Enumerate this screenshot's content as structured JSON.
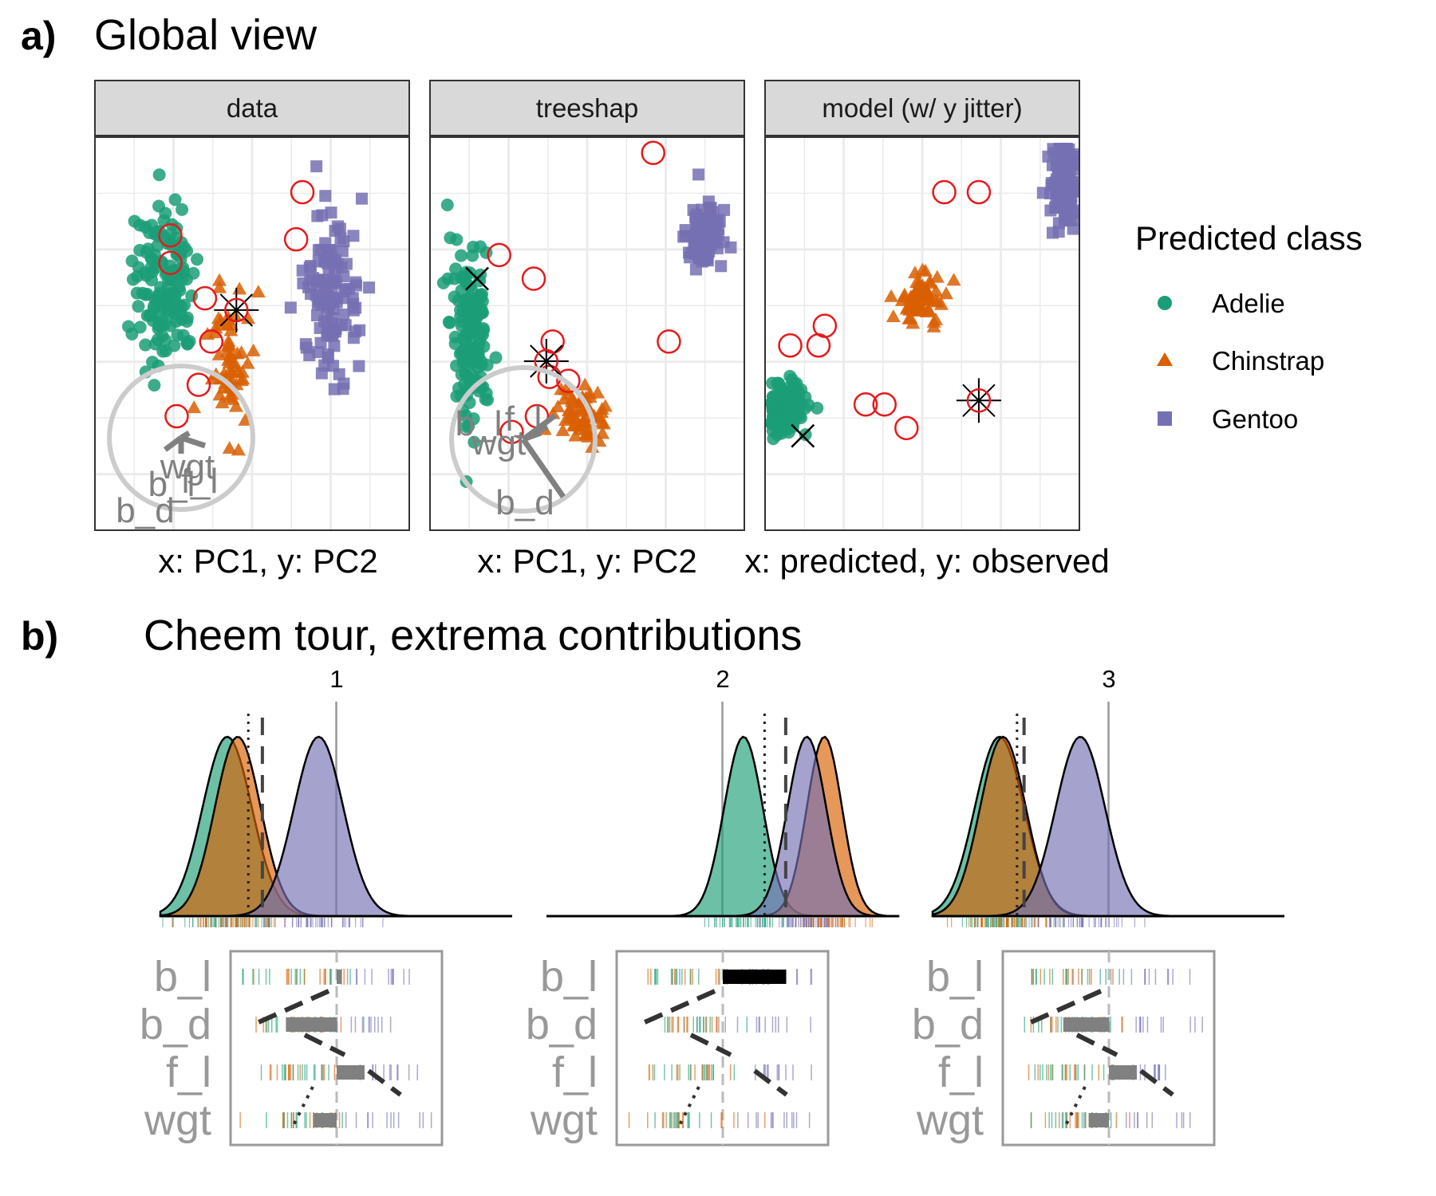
{
  "section_a": {
    "letter": "a)",
    "title": "Global view"
  },
  "section_b": {
    "letter": "b)",
    "title": "Cheem tour, extrema contributions"
  },
  "legend": {
    "title": "Predicted class",
    "items": [
      {
        "label": "Adelie",
        "color": "#1b9e77",
        "shape": "circle"
      },
      {
        "label": "Chinstrap",
        "color": "#d95f02",
        "shape": "triangle"
      },
      {
        "label": "Gentoo",
        "color": "#7570b3",
        "shape": "square"
      }
    ]
  },
  "colors": {
    "adelie": "#1b9e77",
    "chinstrap": "#d95f02",
    "gentoo": "#7570b3",
    "highlight": "#e41a1c",
    "axis_grey": "#999999",
    "strip_fill": "#d9d9d9"
  },
  "chart_data": [
    {
      "type": "scatter",
      "facet": "data",
      "caption": "x: PC1, y: PC2",
      "series": [
        {
          "name": "Adelie",
          "shape": "circle",
          "center": [
            0.22,
            0.37
          ],
          "spread": [
            0.09,
            0.19
          ],
          "count": 140
        },
        {
          "name": "Chinstrap",
          "shape": "triangle",
          "center": [
            0.43,
            0.58
          ],
          "spread": [
            0.06,
            0.17
          ],
          "count": 62
        },
        {
          "name": "Gentoo",
          "shape": "square",
          "center": [
            0.75,
            0.41
          ],
          "spread": [
            0.08,
            0.18
          ],
          "count": 115
        }
      ],
      "highlighted": [
        [
          0.66,
          0.14
        ],
        [
          0.24,
          0.25
        ],
        [
          0.24,
          0.32
        ],
        [
          0.35,
          0.41
        ],
        [
          0.37,
          0.52
        ],
        [
          0.33,
          0.63
        ],
        [
          0.26,
          0.71
        ],
        [
          0.64,
          0.26
        ]
      ],
      "primary_obs": [
        0.45,
        0.44
      ],
      "comparison_obs": [
        0.44,
        0.44
      ],
      "axes_biplot": {
        "labels": [
          "b_l",
          "b_d",
          "f_l",
          "wgt"
        ]
      }
    },
    {
      "type": "scatter",
      "facet": "treeshap",
      "caption": "x: PC1, y: PC2",
      "series": [
        {
          "name": "Adelie",
          "shape": "circle",
          "center": [
            0.13,
            0.48
          ],
          "spread": [
            0.06,
            0.22
          ],
          "count": 140
        },
        {
          "name": "Chinstrap",
          "shape": "triangle",
          "center": [
            0.49,
            0.71
          ],
          "spread": [
            0.08,
            0.06
          ],
          "count": 62
        },
        {
          "name": "Gentoo",
          "shape": "square",
          "center": [
            0.87,
            0.25
          ],
          "spread": [
            0.05,
            0.07
          ],
          "count": 115
        }
      ],
      "highlighted": [
        [
          0.71,
          0.04
        ],
        [
          0.22,
          0.3
        ],
        [
          0.33,
          0.36
        ],
        [
          0.39,
          0.52
        ],
        [
          0.38,
          0.61
        ],
        [
          0.76,
          0.52
        ],
        [
          0.34,
          0.71
        ],
        [
          0.26,
          0.75
        ],
        [
          0.44,
          0.62
        ]
      ],
      "primary_obs": [
        0.37,
        0.57
      ],
      "comparison_obs": [
        0.15,
        0.36
      ],
      "axes_biplot": {
        "labels": [
          "b_l",
          "b_d",
          "f_l",
          "wgt"
        ]
      }
    },
    {
      "type": "scatter",
      "facet": "model (w/ y jitter)",
      "caption": "x: predicted, y: observed",
      "series": [
        {
          "name": "Adelie",
          "shape": "circle",
          "center": [
            0.07,
            0.69
          ],
          "spread": [
            0.06,
            0.06
          ],
          "count": 140
        },
        {
          "name": "Chinstrap",
          "shape": "triangle",
          "center": [
            0.5,
            0.4
          ],
          "spread": [
            0.08,
            0.07
          ],
          "count": 62
        },
        {
          "name": "Gentoo",
          "shape": "square",
          "center": [
            0.95,
            0.12
          ],
          "spread": [
            0.04,
            0.1
          ],
          "count": 115
        }
      ],
      "highlighted": [
        [
          0.57,
          0.14
        ],
        [
          0.68,
          0.14
        ],
        [
          0.19,
          0.48
        ],
        [
          0.17,
          0.53
        ],
        [
          0.08,
          0.53
        ],
        [
          0.32,
          0.68
        ],
        [
          0.38,
          0.68
        ],
        [
          0.45,
          0.74
        ]
      ],
      "primary_obs": [
        0.68,
        0.67
      ],
      "comparison_obs": [
        0.12,
        0.76
      ],
      "observed_levels": [
        "Gentoo",
        "Chinstrap",
        "Adelie"
      ]
    },
    {
      "type": "area",
      "frame_label": "1",
      "description": "density of projected values by predicted class",
      "series": [
        {
          "name": "Adelie",
          "peak": 0.19,
          "sd": 0.07
        },
        {
          "name": "Chinstrap",
          "peak": 0.22,
          "sd": 0.065
        },
        {
          "name": "Gentoo",
          "peak": 0.45,
          "sd": 0.07
        }
      ],
      "reference_lines": {
        "solid": 0.5,
        "dashed": 0.29,
        "dotted": 0.25
      },
      "basis": [
        {
          "variable": "b_l",
          "contribution": 0.04
        },
        {
          "variable": "b_d",
          "contribution": -0.4
        },
        {
          "variable": "f_l",
          "contribution": 0.22
        },
        {
          "variable": "wgt",
          "contribution": -0.18
        }
      ]
    },
    {
      "type": "area",
      "frame_label": "2",
      "description": "density of projected values by predicted class",
      "series": [
        {
          "name": "Adelie",
          "peak": 0.56,
          "sd": 0.055
        },
        {
          "name": "Chinstrap",
          "peak": 0.79,
          "sd": 0.05
        },
        {
          "name": "Gentoo",
          "peak": 0.74,
          "sd": 0.055
        }
      ],
      "reference_lines": {
        "solid": 0.5,
        "dashed": 0.68,
        "dotted": 0.62
      },
      "basis": [
        {
          "variable": "b_l",
          "contribution": 0.5
        },
        {
          "variable": "b_d",
          "contribution": 0.0
        },
        {
          "variable": "f_l",
          "contribution": 0.0
        },
        {
          "variable": "wgt",
          "contribution": 0.0
        }
      ]
    },
    {
      "type": "area",
      "frame_label": "3",
      "description": "density of projected values by predicted class",
      "series": [
        {
          "name": "Adelie",
          "peak": 0.19,
          "sd": 0.07
        },
        {
          "name": "Chinstrap",
          "peak": 0.2,
          "sd": 0.065
        },
        {
          "name": "Gentoo",
          "peak": 0.42,
          "sd": 0.07
        }
      ],
      "reference_lines": {
        "solid": 0.5,
        "dashed": 0.26,
        "dotted": 0.24
      },
      "basis": [
        {
          "variable": "b_l",
          "contribution": 0.0
        },
        {
          "variable": "b_d",
          "contribution": -0.36
        },
        {
          "variable": "f_l",
          "contribution": 0.22
        },
        {
          "variable": "wgt",
          "contribution": -0.16
        }
      ]
    }
  ],
  "facets": [
    {
      "strip": "data",
      "caption": "x: PC1, y: PC2"
    },
    {
      "strip": "treeshap",
      "caption": "x: PC1, y: PC2"
    },
    {
      "strip": "model (w/ y jitter)",
      "caption": "x: predicted, y: observed"
    }
  ],
  "tour_frames": [
    {
      "label": "1"
    },
    {
      "label": "2"
    },
    {
      "label": "3"
    }
  ],
  "basis_variables": [
    "b_l",
    "b_d",
    "f_l",
    "wgt"
  ],
  "biplot_labels_a": [
    "wgt",
    "b_l",
    "f_l",
    "b_d"
  ],
  "biplot_labels_b": [
    "b_l",
    "f_l",
    "wgt",
    "b_d"
  ]
}
